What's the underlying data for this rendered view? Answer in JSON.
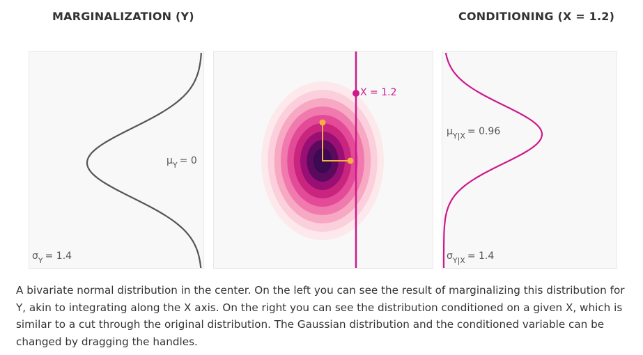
{
  "headings": {
    "left": "MARGINALIZATION (Y)",
    "right": "CONDITIONING (X = 1.2)"
  },
  "left_panel": {
    "mu_symbol": "μ",
    "mu_subscript": "Y",
    "mu_value": "= 0",
    "sigma_symbol": "σ",
    "sigma_subscript": "Y",
    "sigma_value": "= 1.4",
    "curve_color": "#555555"
  },
  "center_panel": {
    "x_label": "X = 1.2",
    "cut_color": "#cc1a8b",
    "handle_color": "#f5b041",
    "density_colors": [
      "#fde9ec",
      "#fbd0dc",
      "#f7a8c3",
      "#f07aad",
      "#e34a97",
      "#c9257f",
      "#9a0f74",
      "#5c0a5e",
      "#3b0a52"
    ]
  },
  "right_panel": {
    "mu_symbol": "μ",
    "mu_subscript": "Y|X",
    "mu_value": "= 0.96",
    "sigma_symbol": "σ",
    "sigma_subscript": "Y|X",
    "sigma_value": "= 1.4",
    "curve_color": "#cc1a8b"
  },
  "caption": "A bivariate normal distribution in the center. On the left you can see the result of marginalizing this distribution for Y, akin to integrating along the X axis. On the right you can see the distribution conditioned on a given X, which is similar to a cut through the original distribution. The Gaussian distribution and the conditioned variable can be changed by dragging the handles."
}
